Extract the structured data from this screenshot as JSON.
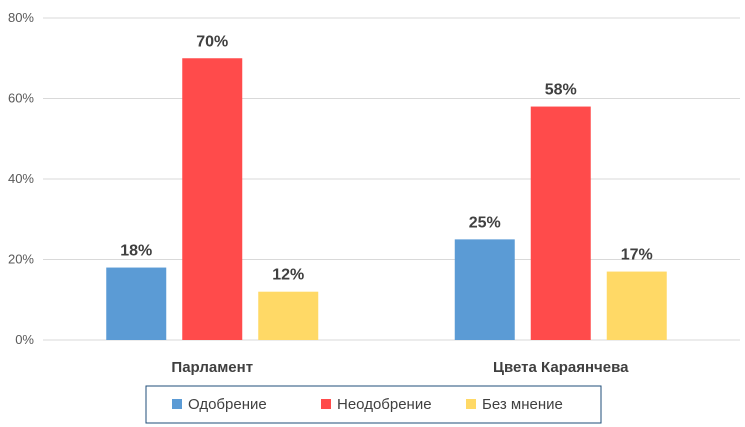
{
  "chart_data": {
    "type": "bar",
    "categories": [
      "Парламент",
      "Цвета Караянчева"
    ],
    "series": [
      {
        "name": "Одобрение",
        "values": [
          18,
          25
        ],
        "labels": [
          "18%",
          "25%"
        ],
        "color": "#5b9bd5"
      },
      {
        "name": "Неодобрение",
        "values": [
          70,
          58
        ],
        "labels": [
          "70%",
          "58%"
        ],
        "color": "#ff4b4b"
      },
      {
        "name": "Без мнение",
        "values": [
          12,
          17
        ],
        "labels": [
          "12%",
          "17%"
        ],
        "color": "#ffd966"
      }
    ],
    "y_ticks": [
      "0%",
      "20%",
      "40%",
      "60%",
      "80%"
    ],
    "ylim": [
      0,
      80
    ],
    "title": "",
    "xlabel": "",
    "ylabel": "",
    "grid": true,
    "legend": "bottom-center"
  }
}
